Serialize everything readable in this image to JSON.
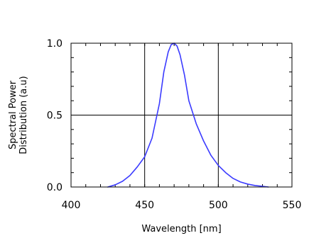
{
  "chart_data": {
    "type": "line",
    "title": "",
    "xlabel": "Wavelength [nm]",
    "ylabel_lines": [
      "Spectral Power",
      "Distribution (a.u)"
    ],
    "xlim": [
      400,
      550
    ],
    "ylim": [
      0.0,
      1.0
    ],
    "xticks": [
      400,
      450,
      500,
      550
    ],
    "xtick_labels": [
      "400",
      "450",
      "500",
      "550"
    ],
    "yticks": [
      0.0,
      0.5,
      1.0
    ],
    "ytick_labels": [
      "0.0",
      "0.5",
      "1.0"
    ],
    "grid": true,
    "legend": "none",
    "series": [
      {
        "color": "#3b3bff",
        "x": [
          425,
          430,
          435,
          440,
          445,
          450,
          455,
          460,
          463,
          466,
          468,
          470,
          472,
          474,
          477,
          480,
          485,
          490,
          495,
          500,
          505,
          510,
          515,
          520,
          525,
          530,
          534
        ],
        "y": [
          0.0,
          0.015,
          0.04,
          0.08,
          0.14,
          0.21,
          0.34,
          0.58,
          0.8,
          0.94,
          0.99,
          1.0,
          0.98,
          0.92,
          0.78,
          0.6,
          0.44,
          0.32,
          0.22,
          0.15,
          0.1,
          0.06,
          0.035,
          0.02,
          0.01,
          0.005,
          0.0
        ]
      }
    ]
  }
}
